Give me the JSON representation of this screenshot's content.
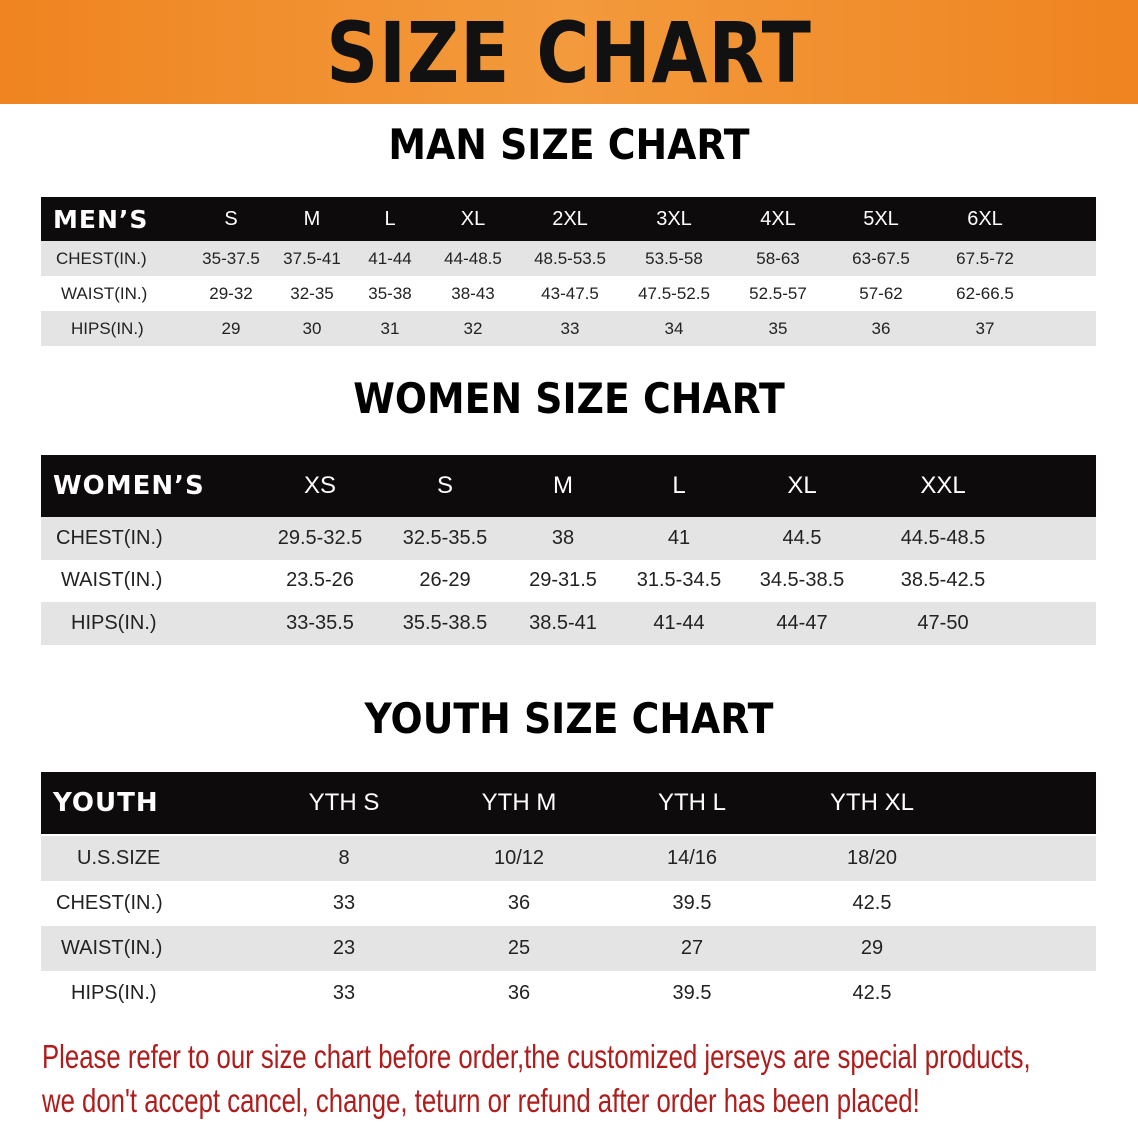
{
  "banner": {
    "title": "SIZE CHART",
    "color": "#ef8420"
  },
  "men": {
    "title": "MAN SIZE CHART",
    "header": "MEN’S",
    "sizes": [
      "S",
      "M",
      "L",
      "XL",
      "2XL",
      "3XL",
      "4XL",
      "5XL",
      "6XL"
    ],
    "rows": [
      {
        "label": "CHEST(IN.)",
        "values": [
          "35-37.5",
          "37.5-41",
          "41-44",
          "44-48.5",
          "48.5-53.5",
          "53.5-58",
          "58-63",
          "63-67.5",
          "67.5-72"
        ]
      },
      {
        "label": "WAIST(IN.)",
        "values": [
          "29-32",
          "32-35",
          "35-38",
          "38-43",
          "43-47.5",
          "47.5-52.5",
          "52.5-57",
          "57-62",
          "62-66.5"
        ]
      },
      {
        "label": "HIPS(IN.)",
        "values": [
          "29",
          "30",
          "31",
          "32",
          "33",
          "34",
          "35",
          "36",
          "37"
        ]
      }
    ]
  },
  "women": {
    "title": "WOMEN SIZE CHART",
    "header": "WOMEN’S",
    "sizes": [
      "XS",
      "S",
      "M",
      "L",
      "XL",
      "XXL"
    ],
    "rows": [
      {
        "label": "CHEST(IN.)",
        "values": [
          "29.5-32.5",
          "32.5-35.5",
          "38",
          "41",
          "44.5",
          "44.5-48.5"
        ]
      },
      {
        "label": "WAIST(IN.)",
        "values": [
          "23.5-26",
          "26-29",
          "29-31.5",
          "31.5-34.5",
          "34.5-38.5",
          "38.5-42.5"
        ]
      },
      {
        "label": "HIPS(IN.)",
        "values": [
          "33-35.5",
          "35.5-38.5",
          "38.5-41",
          "41-44",
          "44-47",
          "47-50"
        ]
      }
    ]
  },
  "youth": {
    "title": "YOUTH SIZE CHART",
    "header": "YOUTH",
    "sizes": [
      "YTH S",
      "YTH M",
      "YTH L",
      "YTH XL"
    ],
    "rows": [
      {
        "label": "U.S.SIZE",
        "values": [
          "8",
          "10/12",
          "14/16",
          "18/20"
        ]
      },
      {
        "label": "CHEST(IN.)",
        "values": [
          "33",
          "36",
          "39.5",
          "42.5"
        ]
      },
      {
        "label": "WAIST(IN.)",
        "values": [
          "23",
          "25",
          "27",
          "29"
        ]
      },
      {
        "label": "HIPS(IN.)",
        "values": [
          "33",
          "36",
          "39.5",
          "42.5"
        ]
      }
    ]
  },
  "notice": {
    "line1": "Please refer to our size chart before order,the customized jerseys are special products,",
    "line2": "we don't accept cancel, change, teturn or refund after order has been placed!",
    "color": "#b01c1c"
  }
}
